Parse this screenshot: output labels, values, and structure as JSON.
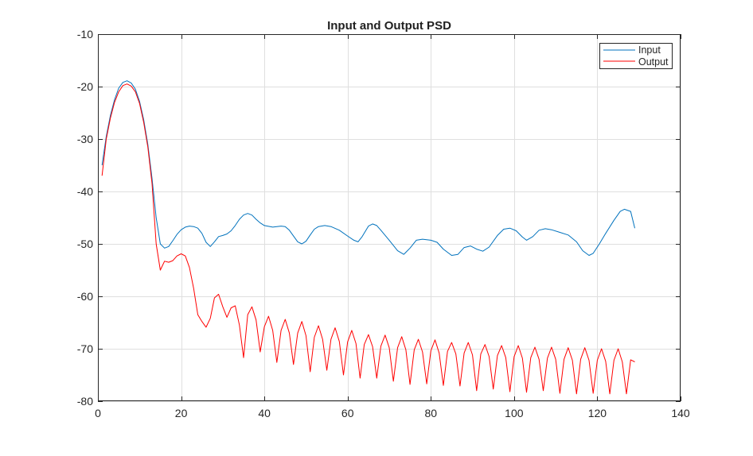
{
  "chart_data": {
    "type": "line",
    "title": "Input and Output PSD",
    "xlabel": "",
    "ylabel": "",
    "xlim": [
      0,
      140
    ],
    "ylim": [
      -80,
      -10
    ],
    "xticks": [
      0,
      20,
      40,
      60,
      80,
      100,
      120,
      140
    ],
    "yticks": [
      -10,
      -20,
      -30,
      -40,
      -50,
      -60,
      -70,
      -80
    ],
    "xtick_labels": [
      "0",
      "20",
      "40",
      "60",
      "80",
      "100",
      "120",
      "140"
    ],
    "ytick_labels": [
      "-10",
      "-20",
      "-30",
      "-40",
      "-50",
      "-60",
      "-70",
      "-80"
    ],
    "grid": true,
    "legend_position": "top-right",
    "series": [
      {
        "name": "Input",
        "color": "#0072BD",
        "points": [
          [
            1,
            -35
          ],
          [
            2,
            -29.5
          ],
          [
            3,
            -25.5
          ],
          [
            4,
            -22.5
          ],
          [
            5,
            -20.3
          ],
          [
            6,
            -19.2
          ],
          [
            7,
            -18.9
          ],
          [
            8,
            -19.3
          ],
          [
            9,
            -20.5
          ],
          [
            10,
            -22.8
          ],
          [
            11,
            -26.3
          ],
          [
            12,
            -31
          ],
          [
            13,
            -37.5
          ],
          [
            14,
            -45
          ],
          [
            15,
            -50
          ],
          [
            16,
            -50.8
          ],
          [
            17,
            -50.5
          ],
          [
            18,
            -49.4
          ],
          [
            19,
            -48.2
          ],
          [
            20,
            -47.3
          ],
          [
            21,
            -46.8
          ],
          [
            22,
            -46.6
          ],
          [
            23,
            -46.7
          ],
          [
            24,
            -47
          ],
          [
            25,
            -48
          ],
          [
            26,
            -49.7
          ],
          [
            27,
            -50.5
          ],
          [
            28,
            -49.6
          ],
          [
            29,
            -48.6
          ],
          [
            30,
            -48.4
          ],
          [
            31,
            -48.1
          ],
          [
            32,
            -47.5
          ],
          [
            33,
            -46.5
          ],
          [
            34,
            -45.3
          ],
          [
            35,
            -44.5
          ],
          [
            36,
            -44.2
          ],
          [
            37,
            -44.5
          ],
          [
            38,
            -45.3
          ],
          [
            39,
            -46
          ],
          [
            40,
            -46.5
          ],
          [
            42,
            -46.8
          ],
          [
            44,
            -46.6
          ],
          [
            45,
            -46.7
          ],
          [
            46,
            -47.4
          ],
          [
            47,
            -48.5
          ],
          [
            48,
            -49.6
          ],
          [
            49,
            -50
          ],
          [
            50,
            -49.5
          ],
          [
            51,
            -48.3
          ],
          [
            52,
            -47.2
          ],
          [
            53,
            -46.7
          ],
          [
            54.5,
            -46.5
          ],
          [
            56,
            -46.7
          ],
          [
            58,
            -47.4
          ],
          [
            60,
            -48.5
          ],
          [
            61.5,
            -49.3
          ],
          [
            62.5,
            -49.6
          ],
          [
            63.5,
            -48.6
          ],
          [
            65,
            -46.6
          ],
          [
            66,
            -46.2
          ],
          [
            67,
            -46.5
          ],
          [
            68,
            -47.4
          ],
          [
            70,
            -49.3
          ],
          [
            72,
            -51.3
          ],
          [
            73.5,
            -52
          ],
          [
            75,
            -50.8
          ],
          [
            76.5,
            -49.3
          ],
          [
            78,
            -49.1
          ],
          [
            80,
            -49.3
          ],
          [
            81.5,
            -49.7
          ],
          [
            83,
            -51
          ],
          [
            85,
            -52.2
          ],
          [
            86.5,
            -52
          ],
          [
            88,
            -50.7
          ],
          [
            89.5,
            -50.4
          ],
          [
            91,
            -51
          ],
          [
            92.5,
            -51.4
          ],
          [
            94,
            -50.6
          ],
          [
            96,
            -48.4
          ],
          [
            97.5,
            -47.2
          ],
          [
            99,
            -47
          ],
          [
            100.5,
            -47.5
          ],
          [
            102,
            -48.7
          ],
          [
            103,
            -49.3
          ],
          [
            104.5,
            -48.6
          ],
          [
            106,
            -47.4
          ],
          [
            107.5,
            -47.1
          ],
          [
            109,
            -47.3
          ],
          [
            111,
            -47.8
          ],
          [
            113,
            -48.3
          ],
          [
            115,
            -49.6
          ],
          [
            116.5,
            -51.3
          ],
          [
            118,
            -52.2
          ],
          [
            119,
            -51.8
          ],
          [
            120.5,
            -50
          ],
          [
            122,
            -48
          ],
          [
            124,
            -45.5
          ],
          [
            125.5,
            -43.8
          ],
          [
            126.5,
            -43.4
          ],
          [
            128,
            -43.8
          ],
          [
            129,
            -47
          ]
        ]
      },
      {
        "name": "Output",
        "color": "#FF0000",
        "points": [
          [
            1,
            -37
          ],
          [
            2,
            -30
          ],
          [
            3,
            -26
          ],
          [
            4,
            -23
          ],
          [
            5,
            -21
          ],
          [
            6,
            -19.8
          ],
          [
            7,
            -19.5
          ],
          [
            8,
            -19.9
          ],
          [
            9,
            -21
          ],
          [
            10,
            -23.2
          ],
          [
            11,
            -26.8
          ],
          [
            12,
            -31.5
          ],
          [
            13,
            -38.5
          ],
          [
            14,
            -50
          ],
          [
            15,
            -55
          ],
          [
            16,
            -53.3
          ],
          [
            17,
            -53.5
          ],
          [
            18,
            -53.2
          ],
          [
            19,
            -52.3
          ],
          [
            20,
            -51.9
          ],
          [
            21,
            -52.3
          ],
          [
            22,
            -54.5
          ],
          [
            23,
            -58.5
          ],
          [
            24,
            -63.5
          ],
          [
            25,
            -64.8
          ],
          [
            26,
            -65.9
          ],
          [
            27,
            -64.2
          ],
          [
            28,
            -60.3
          ],
          [
            29,
            -59.6
          ],
          [
            30,
            -62
          ],
          [
            31,
            -64
          ],
          [
            32,
            -62.2
          ],
          [
            33,
            -61.8
          ],
          [
            34,
            -65.5
          ],
          [
            35,
            -71.7
          ],
          [
            36,
            -63.5
          ],
          [
            37,
            -62
          ],
          [
            38,
            -64.5
          ],
          [
            39,
            -70.6
          ],
          [
            40,
            -65.8
          ],
          [
            41,
            -63.8
          ],
          [
            42,
            -66.5
          ],
          [
            43,
            -72.6
          ],
          [
            44,
            -66.5
          ],
          [
            45,
            -64.4
          ],
          [
            46,
            -67
          ],
          [
            47,
            -73
          ],
          [
            48,
            -67
          ],
          [
            49,
            -64.8
          ],
          [
            50,
            -67.5
          ],
          [
            51,
            -74.4
          ],
          [
            52,
            -67.8
          ],
          [
            53,
            -65.6
          ],
          [
            54,
            -68.2
          ],
          [
            55,
            -74.1
          ],
          [
            56,
            -68.2
          ],
          [
            57,
            -66
          ],
          [
            58,
            -68.6
          ],
          [
            59,
            -75
          ],
          [
            60,
            -68.7
          ],
          [
            61,
            -66.5
          ],
          [
            62,
            -69
          ],
          [
            63,
            -75.6
          ],
          [
            64,
            -69.2
          ],
          [
            65,
            -67.3
          ],
          [
            66,
            -69.6
          ],
          [
            67,
            -75.6
          ],
          [
            68,
            -69.5
          ],
          [
            69,
            -67.4
          ],
          [
            70,
            -69.8
          ],
          [
            71,
            -76.2
          ],
          [
            72,
            -69.8
          ],
          [
            73,
            -67.7
          ],
          [
            74,
            -70.2
          ],
          [
            75,
            -76.8
          ],
          [
            76,
            -70.2
          ],
          [
            77,
            -68.2
          ],
          [
            78,
            -70.6
          ],
          [
            79,
            -76.7
          ],
          [
            80,
            -70.4
          ],
          [
            81,
            -68.3
          ],
          [
            82,
            -70.8
          ],
          [
            83,
            -77
          ],
          [
            84,
            -70.5
          ],
          [
            85,
            -68.8
          ],
          [
            86,
            -71
          ],
          [
            87,
            -77.1
          ],
          [
            88,
            -70.8
          ],
          [
            89,
            -68.8
          ],
          [
            90,
            -71.2
          ],
          [
            91,
            -78
          ],
          [
            92,
            -71
          ],
          [
            93,
            -69.2
          ],
          [
            94,
            -71.5
          ],
          [
            95,
            -77.7
          ],
          [
            96,
            -71.3
          ],
          [
            97,
            -69.4
          ],
          [
            98,
            -71.7
          ],
          [
            99,
            -78.2
          ],
          [
            100,
            -71.5
          ],
          [
            101,
            -69.4
          ],
          [
            102,
            -71.8
          ],
          [
            103,
            -78.3
          ],
          [
            104,
            -71.7
          ],
          [
            105,
            -69.7
          ],
          [
            106,
            -72
          ],
          [
            107,
            -78
          ],
          [
            108,
            -71.8
          ],
          [
            109,
            -69.7
          ],
          [
            110,
            -72
          ],
          [
            111,
            -78.5
          ],
          [
            112,
            -72
          ],
          [
            113,
            -69.8
          ],
          [
            114,
            -72.2
          ],
          [
            115,
            -78.6
          ],
          [
            116,
            -72
          ],
          [
            117,
            -69.8
          ],
          [
            118,
            -72.2
          ],
          [
            119,
            -78.5
          ],
          [
            120,
            -72.2
          ],
          [
            121,
            -70
          ],
          [
            122,
            -72.4
          ],
          [
            123,
            -78.6
          ],
          [
            124,
            -72.2
          ],
          [
            125,
            -70
          ],
          [
            126,
            -72.5
          ],
          [
            127,
            -78.6
          ],
          [
            128,
            -72.1
          ],
          [
            129,
            -72.5
          ]
        ]
      }
    ]
  }
}
